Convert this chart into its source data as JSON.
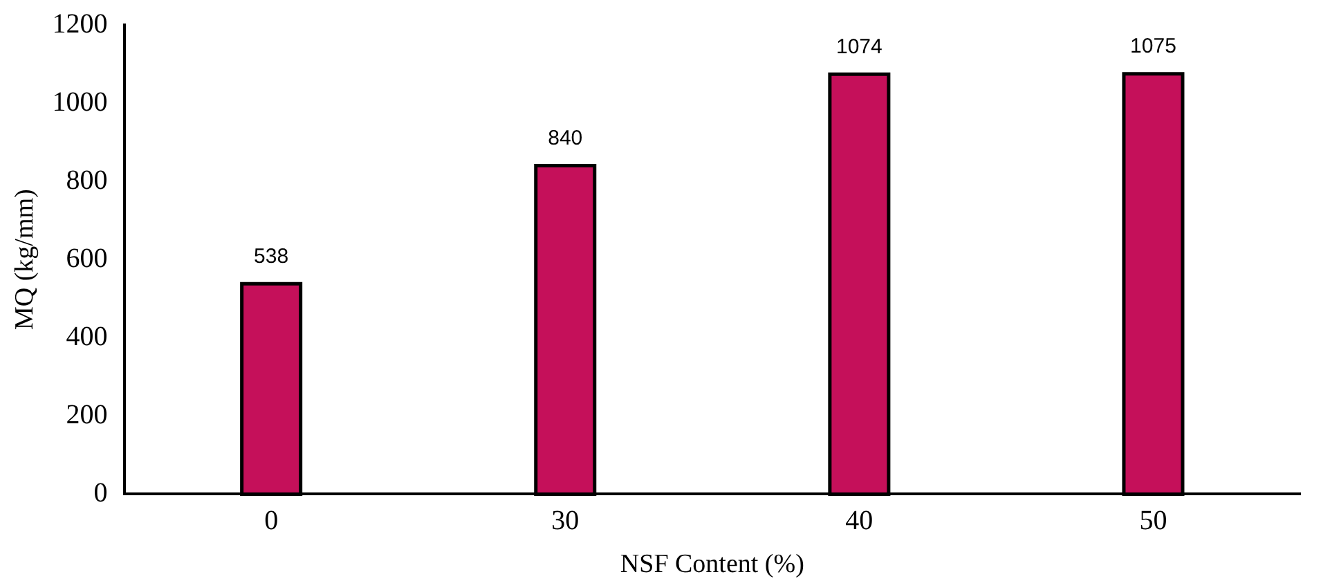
{
  "chart_data": {
    "type": "bar",
    "xlabel": "NSF Content (%)",
    "ylabel": "MQ (kg/mm)",
    "categories": [
      "0",
      "30",
      "40",
      "50"
    ],
    "values": [
      538,
      840,
      1074,
      1075
    ],
    "color": "#c5105a",
    "ylim": [
      0,
      1200
    ],
    "yticks": [
      0,
      200,
      400,
      600,
      800,
      1000,
      1200
    ],
    "data_labels": true
  }
}
